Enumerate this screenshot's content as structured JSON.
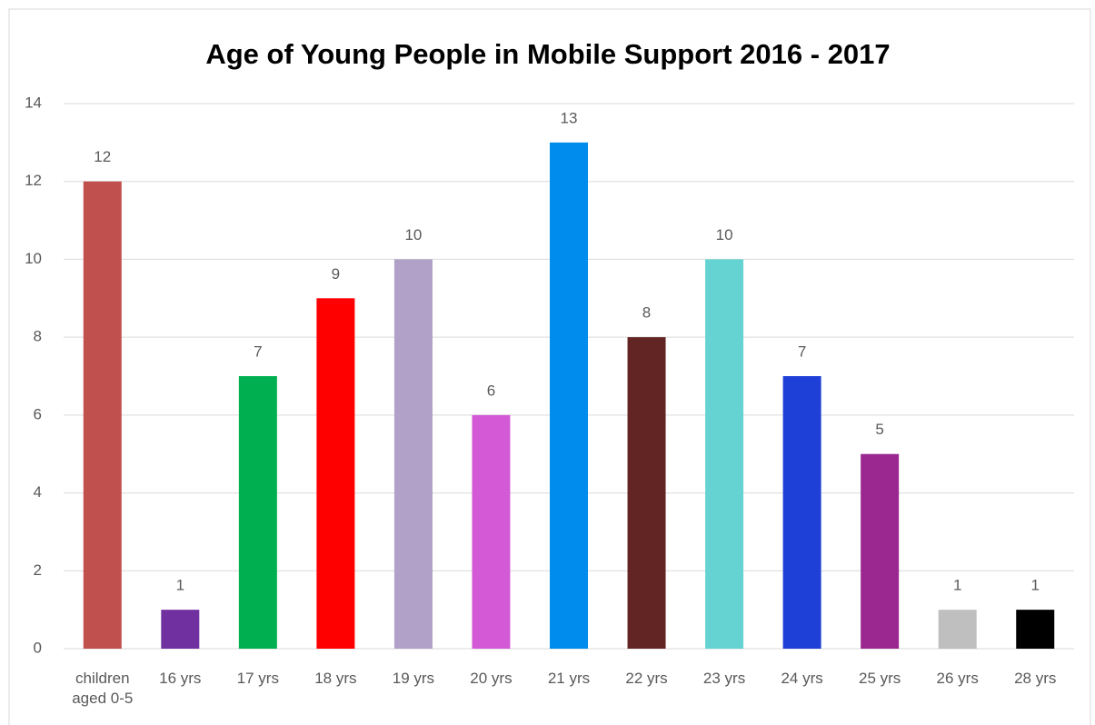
{
  "chart_data": {
    "type": "bar",
    "title": "Age of Young People in Mobile Support 2016 - 2017",
    "categories": [
      "children aged 0-5",
      "16 yrs",
      "17 yrs",
      "18 yrs",
      "19 yrs",
      "20 yrs",
      "21 yrs",
      "22 yrs",
      "23 yrs",
      "24 yrs",
      "25 yrs",
      "26 yrs",
      "28 yrs"
    ],
    "values": [
      12,
      1,
      7,
      9,
      10,
      6,
      13,
      8,
      10,
      7,
      5,
      1,
      1
    ],
    "colors": [
      "#c0504d",
      "#7030a0",
      "#00b050",
      "#ff0000",
      "#b1a0c7",
      "#d359d6",
      "#008ced",
      "#632523",
      "#66d3d3",
      "#1f40d7",
      "#9b2791",
      "#bfbfbf",
      "#000000"
    ],
    "ylim": [
      0,
      14
    ],
    "yticks": [
      0,
      2,
      4,
      6,
      8,
      10,
      12,
      14
    ],
    "grid": true
  }
}
